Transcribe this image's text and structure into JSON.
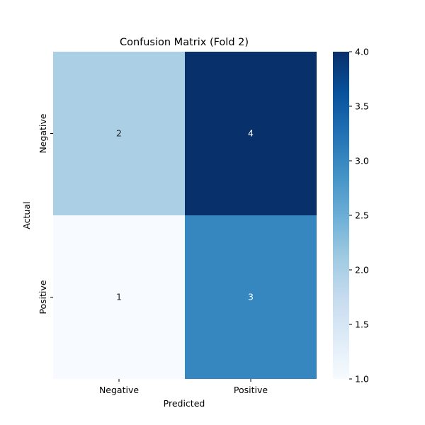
{
  "chart_data": {
    "type": "heatmap",
    "title": "Confusion Matrix (Fold 2)",
    "xlabel": "Predicted",
    "ylabel": "Actual",
    "x_categories": [
      "Negative",
      "Positive"
    ],
    "y_categories": [
      "Negative",
      "Positive"
    ],
    "values": [
      [
        2,
        4
      ],
      [
        1,
        3
      ]
    ],
    "colormap": "Blues",
    "vmin": 1,
    "vmax": 4,
    "colorbar_ticks": [
      "1.0",
      "1.5",
      "2.0",
      "2.5",
      "3.0",
      "3.5",
      "4.0"
    ],
    "colors": {
      "cell_2": "#abcfe5",
      "cell_4": "#08306b",
      "cell_1": "#f7fbff",
      "cell_3": "#3686c0",
      "text_dark": "#262626",
      "text_light": "#ffffff"
    }
  }
}
